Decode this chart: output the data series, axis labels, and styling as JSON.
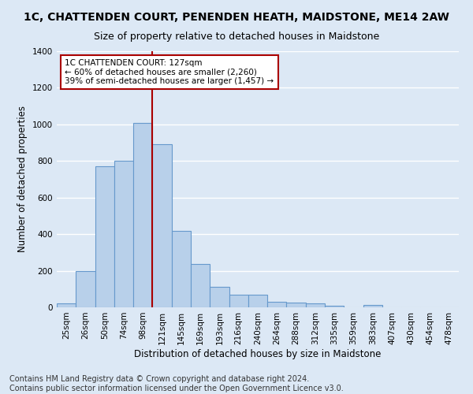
{
  "title": "1C, CHATTENDEN COURT, PENENDEN HEATH, MAIDSTONE, ME14 2AW",
  "subtitle": "Size of property relative to detached houses in Maidstone",
  "xlabel": "Distribution of detached houses by size in Maidstone",
  "ylabel": "Number of detached properties",
  "footnote1": "Contains HM Land Registry data © Crown copyright and database right 2024.",
  "footnote2": "Contains public sector information licensed under the Open Government Licence v3.0.",
  "categories": [
    "25sqm",
    "26sqm",
    "50sqm",
    "74sqm",
    "98sqm",
    "121sqm",
    "145sqm",
    "169sqm",
    "193sqm",
    "216sqm",
    "240sqm",
    "264sqm",
    "288sqm",
    "312sqm",
    "335sqm",
    "359sqm",
    "383sqm",
    "407sqm",
    "430sqm",
    "454sqm",
    "478sqm"
  ],
  "bar_values": [
    20,
    200,
    770,
    800,
    1010,
    890,
    420,
    235,
    110,
    70,
    70,
    30,
    25,
    20,
    10,
    0,
    15,
    0,
    0,
    0,
    0
  ],
  "bar_color": "#b8d0ea",
  "bar_edge_color": "#6699cc",
  "vline_index": 5,
  "vline_color": "#aa0000",
  "annotation_text": "1C CHATTENDEN COURT: 127sqm\n← 60% of detached houses are smaller (2,260)\n39% of semi-detached houses are larger (1,457) →",
  "annotation_box_color": "#ffffff",
  "annotation_box_edge": "#aa0000",
  "ylim": [
    0,
    1400
  ],
  "yticks": [
    0,
    200,
    400,
    600,
    800,
    1000,
    1200,
    1400
  ],
  "background_color": "#dce8f5",
  "plot_bg_color": "#dce8f5",
  "grid_color": "#ffffff",
  "title_fontsize": 10,
  "subtitle_fontsize": 9,
  "axis_label_fontsize": 8.5,
  "tick_fontsize": 7.5,
  "footnote_fontsize": 7
}
